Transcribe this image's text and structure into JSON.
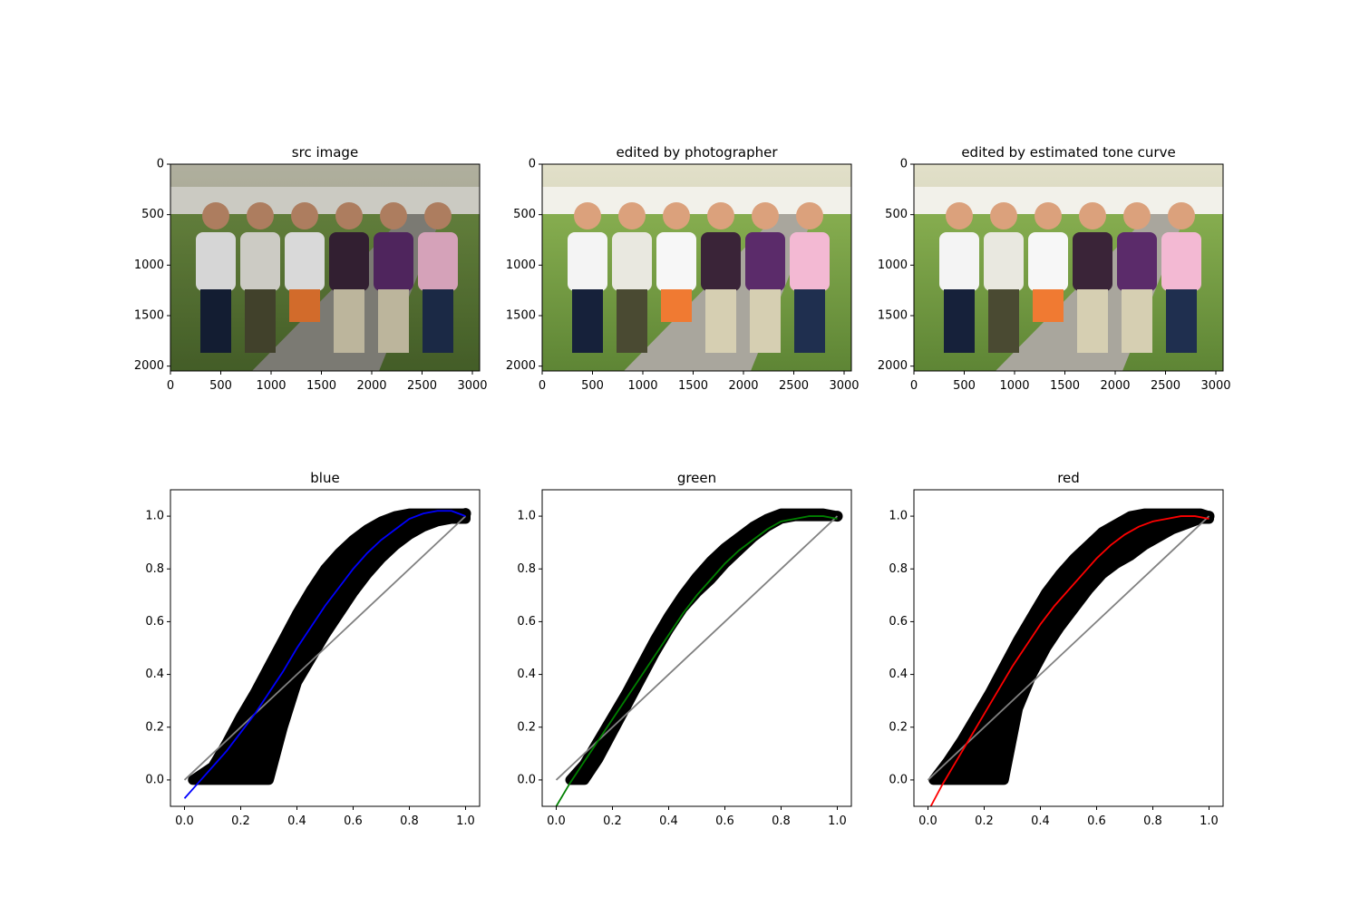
{
  "figure": {
    "image_panels": [
      {
        "id": "src",
        "title": "src image",
        "xticks": [
          "0",
          "500",
          "1000",
          "1500",
          "2000",
          "2500",
          "3000"
        ],
        "yticks": [
          "0",
          "500",
          "1000",
          "1500",
          "2000"
        ],
        "xlim": [
          0,
          3072
        ],
        "ylim": [
          2048,
          0
        ],
        "image": {
          "description": "photo",
          "tone": "src"
        }
      },
      {
        "id": "photographer",
        "title": "edited by photographer",
        "xticks": [
          "0",
          "500",
          "1000",
          "1500",
          "2000",
          "2500",
          "3000"
        ],
        "yticks": [
          "0",
          "500",
          "1000",
          "1500",
          "2000"
        ],
        "xlim": [
          0,
          3072
        ],
        "ylim": [
          2048,
          0
        ],
        "image": {
          "description": "photo",
          "tone": "edited"
        }
      },
      {
        "id": "estimated",
        "title": "edited by estimated tone curve",
        "xticks": [
          "0",
          "500",
          "1000",
          "1500",
          "2000",
          "2500",
          "3000"
        ],
        "yticks": [
          "0",
          "500",
          "1000",
          "1500",
          "2000"
        ],
        "xlim": [
          0,
          3072
        ],
        "ylim": [
          2048,
          0
        ],
        "image": {
          "description": "photo",
          "tone": "edited"
        }
      }
    ]
  },
  "chart_data": [
    {
      "type": "scatter",
      "title": "blue",
      "xlabel": "",
      "ylabel": "",
      "xlim": [
        -0.05,
        1.05
      ],
      "ylim": [
        -0.1,
        1.1
      ],
      "xticks": [
        "0.0",
        "0.2",
        "0.4",
        "0.6",
        "0.8",
        "1.0"
      ],
      "yticks": [
        "0.0",
        "0.2",
        "0.4",
        "0.6",
        "0.8",
        "1.0"
      ],
      "grid": false,
      "scatter_band": {
        "color": "#000000",
        "x": [
          0.03,
          0.1,
          0.15,
          0.2,
          0.25,
          0.3,
          0.35,
          0.4,
          0.45,
          0.5,
          0.55,
          0.6,
          0.65,
          0.7,
          0.75,
          0.8,
          0.85,
          0.9,
          0.95,
          1.0
        ],
        "y_low": [
          0.0,
          0.0,
          0.0,
          0.0,
          0.0,
          0.0,
          0.2,
          0.37,
          0.46,
          0.55,
          0.63,
          0.71,
          0.78,
          0.84,
          0.89,
          0.93,
          0.96,
          0.98,
          0.99,
          0.99
        ],
        "y_high": [
          0.0,
          0.05,
          0.14,
          0.24,
          0.33,
          0.43,
          0.53,
          0.63,
          0.72,
          0.8,
          0.86,
          0.91,
          0.95,
          0.98,
          1.0,
          1.01,
          1.01,
          1.01,
          1.01,
          1.01
        ]
      },
      "fit": {
        "color": "#0000ff",
        "x": [
          0.0,
          0.05,
          0.1,
          0.15,
          0.2,
          0.25,
          0.3,
          0.35,
          0.4,
          0.45,
          0.5,
          0.55,
          0.6,
          0.65,
          0.7,
          0.75,
          0.8,
          0.85,
          0.9,
          0.95,
          1.0
        ],
        "y": [
          -0.07,
          -0.01,
          0.05,
          0.11,
          0.18,
          0.25,
          0.33,
          0.41,
          0.5,
          0.58,
          0.66,
          0.73,
          0.8,
          0.86,
          0.91,
          0.95,
          0.99,
          1.01,
          1.02,
          1.02,
          1.0
        ]
      },
      "identity": {
        "color": "#808080",
        "x": [
          0.0,
          1.0
        ],
        "y": [
          0.0,
          1.0
        ]
      }
    },
    {
      "type": "scatter",
      "title": "green",
      "xlabel": "",
      "ylabel": "",
      "xlim": [
        -0.05,
        1.05
      ],
      "ylim": [
        -0.1,
        1.1
      ],
      "xticks": [
        "0.0",
        "0.2",
        "0.4",
        "0.6",
        "0.8",
        "1.0"
      ],
      "yticks": [
        "0.0",
        "0.2",
        "0.4",
        "0.6",
        "0.8",
        "1.0"
      ],
      "grid": false,
      "scatter_band": {
        "color": "#000000",
        "x": [
          0.05,
          0.1,
          0.15,
          0.2,
          0.25,
          0.3,
          0.35,
          0.4,
          0.45,
          0.5,
          0.55,
          0.6,
          0.65,
          0.7,
          0.75,
          0.8,
          0.85,
          0.9,
          0.95,
          1.0
        ],
        "y_low": [
          0.0,
          0.0,
          0.08,
          0.18,
          0.28,
          0.38,
          0.48,
          0.57,
          0.65,
          0.71,
          0.76,
          0.82,
          0.87,
          0.92,
          0.96,
          0.99,
          1.0,
          1.0,
          1.0,
          1.0
        ],
        "y_high": [
          0.0,
          0.06,
          0.15,
          0.24,
          0.33,
          0.43,
          0.53,
          0.62,
          0.7,
          0.77,
          0.83,
          0.88,
          0.92,
          0.96,
          0.99,
          1.01,
          1.01,
          1.01,
          1.01,
          1.0
        ]
      },
      "fit": {
        "color": "#008000",
        "x": [
          0.0,
          0.05,
          0.1,
          0.15,
          0.2,
          0.25,
          0.3,
          0.35,
          0.4,
          0.45,
          0.5,
          0.55,
          0.6,
          0.65,
          0.7,
          0.75,
          0.8,
          0.85,
          0.9,
          0.95,
          1.0
        ],
        "y": [
          -0.1,
          -0.01,
          0.07,
          0.15,
          0.23,
          0.31,
          0.39,
          0.47,
          0.55,
          0.63,
          0.7,
          0.76,
          0.82,
          0.87,
          0.91,
          0.95,
          0.98,
          0.99,
          1.0,
          1.0,
          0.99
        ]
      },
      "identity": {
        "color": "#808080",
        "x": [
          0.0,
          1.0
        ],
        "y": [
          0.0,
          1.0
        ]
      }
    },
    {
      "type": "scatter",
      "title": "red",
      "xlabel": "",
      "ylabel": "",
      "xlim": [
        -0.05,
        1.05
      ],
      "ylim": [
        -0.1,
        1.1
      ],
      "xticks": [
        "0.0",
        "0.2",
        "0.4",
        "0.6",
        "0.8",
        "1.0"
      ],
      "yticks": [
        "0.0",
        "0.2",
        "0.4",
        "0.6",
        "0.8",
        "1.0"
      ],
      "grid": false,
      "scatter_band": {
        "color": "#000000",
        "x": [
          0.02,
          0.07,
          0.12,
          0.17,
          0.22,
          0.27,
          0.32,
          0.37,
          0.42,
          0.47,
          0.52,
          0.57,
          0.62,
          0.67,
          0.72,
          0.77,
          0.82,
          0.87,
          0.92,
          0.97,
          1.0
        ],
        "y_low": [
          0.0,
          0.0,
          0.0,
          0.0,
          0.0,
          0.0,
          0.27,
          0.4,
          0.5,
          0.58,
          0.65,
          0.72,
          0.78,
          0.82,
          0.85,
          0.89,
          0.92,
          0.95,
          0.97,
          0.99,
          0.99
        ],
        "y_high": [
          0.0,
          0.07,
          0.15,
          0.24,
          0.33,
          0.43,
          0.53,
          0.62,
          0.71,
          0.78,
          0.84,
          0.89,
          0.94,
          0.97,
          1.0,
          1.01,
          1.01,
          1.01,
          1.01,
          1.01,
          1.0
        ]
      },
      "outliers": [
        {
          "x": 0.3,
          "y": 0.19
        }
      ],
      "fit": {
        "color": "#ff0000",
        "x": [
          0.0,
          0.05,
          0.1,
          0.15,
          0.2,
          0.25,
          0.3,
          0.35,
          0.4,
          0.45,
          0.5,
          0.55,
          0.6,
          0.65,
          0.7,
          0.75,
          0.8,
          0.85,
          0.9,
          0.95,
          1.0
        ],
        "y": [
          -0.12,
          -0.02,
          0.07,
          0.16,
          0.25,
          0.34,
          0.43,
          0.51,
          0.59,
          0.66,
          0.72,
          0.78,
          0.84,
          0.89,
          0.93,
          0.96,
          0.98,
          0.99,
          1.0,
          1.0,
          0.99
        ]
      },
      "identity": {
        "color": "#808080",
        "x": [
          0.0,
          1.0
        ],
        "y": [
          0.0,
          1.0
        ]
      }
    }
  ]
}
